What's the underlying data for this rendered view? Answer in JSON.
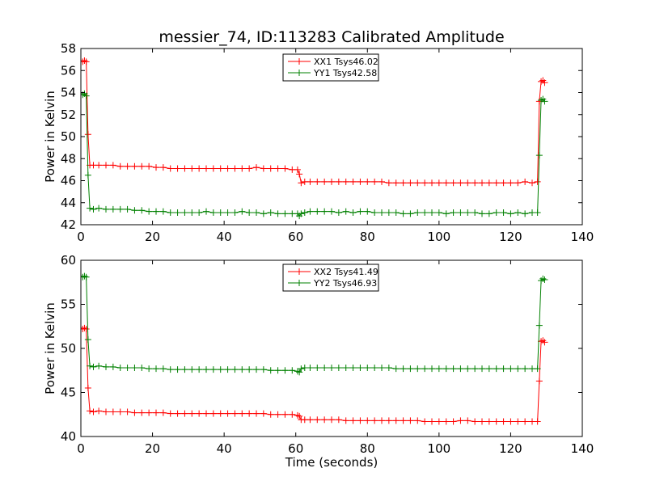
{
  "chart_data": [
    {
      "type": "line",
      "title": "messier_74, ID:113283 Calibrated Amplitude",
      "xlabel": "",
      "ylabel": "Power in Kelvin",
      "xlim": [
        0,
        140
      ],
      "ylim": [
        42,
        58
      ],
      "xticks": [
        0,
        20,
        40,
        60,
        80,
        100,
        120,
        140
      ],
      "yticks": [
        42,
        44,
        46,
        48,
        50,
        52,
        54,
        56,
        58
      ],
      "grid": false,
      "legend": "top-center",
      "series": [
        {
          "name": "XX1 Tsys46.02",
          "color": "#ff0000",
          "x": [
            0.5,
            1.0,
            1.5,
            2.0,
            2.5,
            3.5,
            5,
            7,
            9,
            11,
            13,
            15,
            17,
            19,
            21,
            23,
            25,
            27,
            29,
            31,
            33,
            35,
            37,
            39,
            41,
            43,
            45,
            47,
            49,
            51,
            53,
            55,
            57,
            59,
            60.5,
            61.0,
            61.5,
            62.5,
            64,
            66,
            68,
            70,
            72,
            74,
            76,
            78,
            80,
            82,
            84,
            86,
            88,
            90,
            92,
            94,
            96,
            98,
            100,
            102,
            104,
            106,
            108,
            110,
            112,
            114,
            116,
            118,
            120,
            122,
            124,
            126,
            127.5,
            128.0,
            128.5,
            129.0,
            129.5
          ],
          "values": [
            56.8,
            56.9,
            56.8,
            50.2,
            47.4,
            47.4,
            47.4,
            47.4,
            47.4,
            47.3,
            47.3,
            47.3,
            47.3,
            47.3,
            47.2,
            47.2,
            47.1,
            47.1,
            47.1,
            47.1,
            47.1,
            47.1,
            47.1,
            47.1,
            47.1,
            47.1,
            47.1,
            47.1,
            47.2,
            47.1,
            47.1,
            47.1,
            47.1,
            47.0,
            47.0,
            46.6,
            45.8,
            45.9,
            45.9,
            45.9,
            45.9,
            45.9,
            45.9,
            45.9,
            45.9,
            45.9,
            45.9,
            45.9,
            45.9,
            45.8,
            45.8,
            45.8,
            45.8,
            45.8,
            45.8,
            45.8,
            45.8,
            45.8,
            45.8,
            45.8,
            45.8,
            45.8,
            45.8,
            45.8,
            45.8,
            45.8,
            45.8,
            45.8,
            45.9,
            45.8,
            45.9,
            53.2,
            55.0,
            55.1,
            54.9
          ]
        },
        {
          "name": "YY1 Tsys42.58",
          "color": "#008000",
          "x": [
            0.5,
            1.0,
            1.5,
            2.0,
            2.5,
            3.5,
            5,
            7,
            9,
            11,
            13,
            15,
            17,
            19,
            21,
            23,
            25,
            27,
            29,
            31,
            33,
            35,
            37,
            39,
            41,
            43,
            45,
            47,
            49,
            51,
            53,
            55,
            57,
            59,
            60.5,
            61.0,
            61.5,
            62.5,
            64,
            66,
            68,
            70,
            72,
            74,
            76,
            78,
            80,
            82,
            84,
            86,
            88,
            90,
            92,
            94,
            96,
            98,
            100,
            102,
            104,
            106,
            108,
            110,
            112,
            114,
            116,
            118,
            120,
            122,
            124,
            126,
            127.5,
            128.0,
            128.5,
            129.0,
            129.5
          ],
          "values": [
            53.8,
            53.9,
            53.7,
            46.5,
            43.5,
            43.4,
            43.5,
            43.4,
            43.4,
            43.4,
            43.4,
            43.3,
            43.3,
            43.2,
            43.2,
            43.2,
            43.1,
            43.1,
            43.1,
            43.1,
            43.1,
            43.2,
            43.1,
            43.1,
            43.1,
            43.1,
            43.2,
            43.1,
            43.1,
            43.0,
            43.1,
            43.0,
            43.0,
            43.0,
            43.0,
            42.8,
            43.0,
            43.1,
            43.2,
            43.2,
            43.2,
            43.2,
            43.1,
            43.2,
            43.1,
            43.2,
            43.2,
            43.1,
            43.1,
            43.1,
            43.1,
            43.0,
            43.0,
            43.1,
            43.1,
            43.1,
            43.1,
            43.0,
            43.1,
            43.1,
            43.1,
            43.1,
            43.0,
            43.0,
            43.1,
            43.1,
            43.0,
            43.1,
            43.0,
            43.1,
            43.1,
            48.3,
            53.3,
            53.4,
            53.2
          ]
        }
      ]
    },
    {
      "type": "line",
      "title": "",
      "xlabel": "Time (seconds)",
      "ylabel": "Power in Kelvin",
      "xlim": [
        0,
        140
      ],
      "ylim": [
        40,
        60
      ],
      "xticks": [
        0,
        20,
        40,
        60,
        80,
        100,
        120,
        140
      ],
      "yticks": [
        40,
        45,
        50,
        55,
        60
      ],
      "grid": false,
      "legend": "top-center",
      "series": [
        {
          "name": "XX2 Tsys41.49",
          "color": "#ff0000",
          "x": [
            0.5,
            1.0,
            1.5,
            2.0,
            2.5,
            3.5,
            5,
            7,
            9,
            11,
            13,
            15,
            17,
            19,
            21,
            23,
            25,
            27,
            29,
            31,
            33,
            35,
            37,
            39,
            41,
            43,
            45,
            47,
            49,
            51,
            53,
            55,
            57,
            59,
            60.5,
            61.0,
            61.5,
            62.5,
            64,
            66,
            68,
            70,
            72,
            74,
            76,
            78,
            80,
            82,
            84,
            86,
            88,
            90,
            92,
            94,
            96,
            98,
            100,
            102,
            104,
            106,
            108,
            110,
            112,
            114,
            116,
            118,
            120,
            122,
            124,
            126,
            127.5,
            128.0,
            128.5,
            129.0,
            129.5
          ],
          "values": [
            52.2,
            52.3,
            52.2,
            45.5,
            42.9,
            42.8,
            42.9,
            42.8,
            42.8,
            42.8,
            42.8,
            42.7,
            42.7,
            42.7,
            42.7,
            42.7,
            42.6,
            42.6,
            42.6,
            42.6,
            42.6,
            42.6,
            42.6,
            42.6,
            42.6,
            42.6,
            42.6,
            42.6,
            42.6,
            42.6,
            42.5,
            42.5,
            42.5,
            42.5,
            42.4,
            42.3,
            41.9,
            41.9,
            41.9,
            41.9,
            41.9,
            41.9,
            41.9,
            41.8,
            41.8,
            41.8,
            41.8,
            41.8,
            41.8,
            41.8,
            41.8,
            41.8,
            41.8,
            41.8,
            41.7,
            41.7,
            41.7,
            41.7,
            41.7,
            41.8,
            41.8,
            41.7,
            41.7,
            41.7,
            41.7,
            41.7,
            41.7,
            41.7,
            41.7,
            41.7,
            41.7,
            46.3,
            50.8,
            50.9,
            50.7
          ]
        },
        {
          "name": "YY2 Tsys46.93",
          "color": "#008000",
          "x": [
            0.5,
            1.0,
            1.5,
            2.0,
            2.5,
            3.5,
            5,
            7,
            9,
            11,
            13,
            15,
            17,
            19,
            21,
            23,
            25,
            27,
            29,
            31,
            33,
            35,
            37,
            39,
            41,
            43,
            45,
            47,
            49,
            51,
            53,
            55,
            57,
            59,
            60.5,
            61.0,
            61.5,
            62.5,
            64,
            66,
            68,
            70,
            72,
            74,
            76,
            78,
            80,
            82,
            84,
            86,
            88,
            90,
            92,
            94,
            96,
            98,
            100,
            102,
            104,
            106,
            108,
            110,
            112,
            114,
            116,
            118,
            120,
            122,
            124,
            126,
            127.5,
            128.0,
            128.5,
            129.0,
            129.5
          ],
          "values": [
            58.1,
            58.2,
            58.1,
            51.0,
            48.0,
            47.9,
            48.0,
            47.9,
            47.9,
            47.8,
            47.8,
            47.8,
            47.8,
            47.7,
            47.7,
            47.7,
            47.6,
            47.6,
            47.6,
            47.6,
            47.6,
            47.6,
            47.6,
            47.6,
            47.6,
            47.6,
            47.6,
            47.6,
            47.6,
            47.6,
            47.5,
            47.5,
            47.5,
            47.5,
            47.4,
            47.3,
            47.7,
            47.8,
            47.8,
            47.8,
            47.8,
            47.8,
            47.8,
            47.8,
            47.8,
            47.8,
            47.8,
            47.8,
            47.8,
            47.8,
            47.7,
            47.7,
            47.7,
            47.7,
            47.7,
            47.7,
            47.7,
            47.7,
            47.7,
            47.7,
            47.7,
            47.7,
            47.7,
            47.7,
            47.7,
            47.7,
            47.7,
            47.7,
            47.7,
            47.7,
            47.7,
            52.6,
            57.7,
            57.9,
            57.8
          ]
        }
      ]
    }
  ]
}
